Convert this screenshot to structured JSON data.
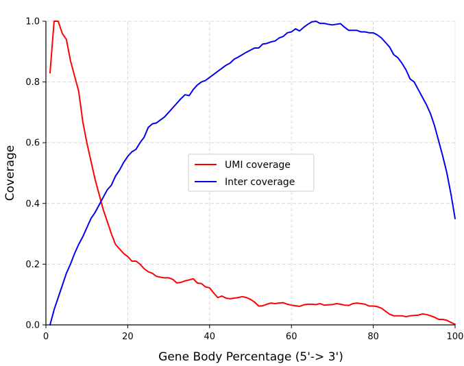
{
  "chart_data": {
    "type": "line",
    "title": "",
    "xlabel": "Gene Body Percentage (5'-> 3')",
    "ylabel": "Coverage",
    "xlim": [
      0,
      100
    ],
    "ylim": [
      0,
      1.0
    ],
    "grid": true,
    "legend_position": "center",
    "x_ticks": [
      0,
      20,
      40,
      60,
      80,
      100
    ],
    "x_tick_labels": [
      "0",
      "20",
      "40",
      "60",
      "80",
      "100"
    ],
    "y_ticks": [
      0,
      0.2,
      0.4,
      0.6,
      0.8,
      1.0
    ],
    "y_tick_labels": [
      "0.0",
      "0.2",
      "0.4",
      "0.6",
      "0.8",
      "1.0"
    ],
    "series": [
      {
        "name": "UMI coverage",
        "color": "#ff0000",
        "x": [
          1,
          2,
          3,
          4,
          5,
          6,
          7,
          8,
          9,
          10,
          11,
          12,
          13,
          14,
          15,
          16,
          17,
          18,
          19,
          20,
          21,
          22,
          23,
          24,
          25,
          26,
          27,
          28,
          29,
          30,
          31,
          32,
          33,
          34,
          35,
          36,
          37,
          38,
          39,
          40,
          41,
          42,
          43,
          44,
          45,
          46,
          47,
          48,
          49,
          50,
          51,
          52,
          53,
          54,
          55,
          56,
          57,
          58,
          59,
          60,
          61,
          62,
          63,
          64,
          65,
          66,
          67,
          68,
          69,
          70,
          71,
          72,
          73,
          74,
          75,
          76,
          77,
          78,
          79,
          80,
          81,
          82,
          83,
          84,
          85,
          86,
          87,
          88,
          89,
          90,
          91,
          92,
          93,
          94,
          95,
          96,
          97,
          98,
          99,
          100
        ],
        "values": [
          0.83,
          1.0,
          1.0,
          0.96,
          0.94,
          0.87,
          0.82,
          0.77,
          0.67,
          0.6,
          0.54,
          0.48,
          0.43,
          0.38,
          0.34,
          0.3,
          0.265,
          0.25,
          0.235,
          0.225,
          0.21,
          0.21,
          0.2,
          0.185,
          0.175,
          0.17,
          0.16,
          0.157,
          0.155,
          0.155,
          0.15,
          0.138,
          0.14,
          0.145,
          0.148,
          0.152,
          0.138,
          0.136,
          0.125,
          0.122,
          0.105,
          0.09,
          0.095,
          0.088,
          0.086,
          0.088,
          0.09,
          0.093,
          0.09,
          0.084,
          0.075,
          0.062,
          0.063,
          0.068,
          0.072,
          0.07,
          0.072,
          0.073,
          0.068,
          0.065,
          0.063,
          0.061,
          0.066,
          0.068,
          0.068,
          0.067,
          0.07,
          0.065,
          0.066,
          0.067,
          0.07,
          0.068,
          0.065,
          0.064,
          0.07,
          0.072,
          0.07,
          0.068,
          0.062,
          0.062,
          0.06,
          0.055,
          0.045,
          0.035,
          0.03,
          0.03,
          0.03,
          0.027,
          0.03,
          0.031,
          0.032,
          0.036,
          0.034,
          0.03,
          0.025,
          0.018,
          0.018,
          0.015,
          0.008,
          0.002
        ]
      },
      {
        "name": "Inter coverage",
        "color": "#0000ee",
        "x": [
          1,
          2,
          3,
          4,
          5,
          6,
          7,
          8,
          9,
          10,
          11,
          12,
          13,
          14,
          15,
          16,
          17,
          18,
          19,
          20,
          21,
          22,
          23,
          24,
          25,
          26,
          27,
          28,
          29,
          30,
          31,
          32,
          33,
          34,
          35,
          36,
          37,
          38,
          39,
          40,
          41,
          42,
          43,
          44,
          45,
          46,
          47,
          48,
          49,
          50,
          51,
          52,
          53,
          54,
          55,
          56,
          57,
          58,
          59,
          60,
          61,
          62,
          63,
          64,
          65,
          66,
          67,
          68,
          69,
          70,
          71,
          72,
          73,
          74,
          75,
          76,
          77,
          78,
          79,
          80,
          81,
          82,
          83,
          84,
          85,
          86,
          87,
          88,
          89,
          90,
          91,
          92,
          93,
          94,
          95,
          96,
          97,
          98,
          99,
          100
        ],
        "values": [
          0.0,
          0.05,
          0.09,
          0.13,
          0.17,
          0.2,
          0.235,
          0.265,
          0.29,
          0.32,
          0.35,
          0.37,
          0.395,
          0.42,
          0.445,
          0.46,
          0.49,
          0.51,
          0.535,
          0.555,
          0.57,
          0.578,
          0.6,
          0.618,
          0.65,
          0.662,
          0.665,
          0.675,
          0.685,
          0.7,
          0.715,
          0.73,
          0.745,
          0.758,
          0.755,
          0.775,
          0.79,
          0.8,
          0.805,
          0.815,
          0.825,
          0.835,
          0.845,
          0.855,
          0.862,
          0.875,
          0.882,
          0.89,
          0.898,
          0.905,
          0.912,
          0.912,
          0.925,
          0.927,
          0.932,
          0.935,
          0.945,
          0.95,
          0.962,
          0.965,
          0.975,
          0.968,
          0.98,
          0.99,
          0.998,
          1.0,
          0.993,
          0.993,
          0.99,
          0.988,
          0.99,
          0.992,
          0.98,
          0.97,
          0.97,
          0.97,
          0.965,
          0.965,
          0.962,
          0.962,
          0.955,
          0.945,
          0.93,
          0.915,
          0.89,
          0.88,
          0.862,
          0.84,
          0.81,
          0.8,
          0.775,
          0.75,
          0.725,
          0.695,
          0.655,
          0.605,
          0.555,
          0.5,
          0.43,
          0.35
        ]
      }
    ]
  }
}
